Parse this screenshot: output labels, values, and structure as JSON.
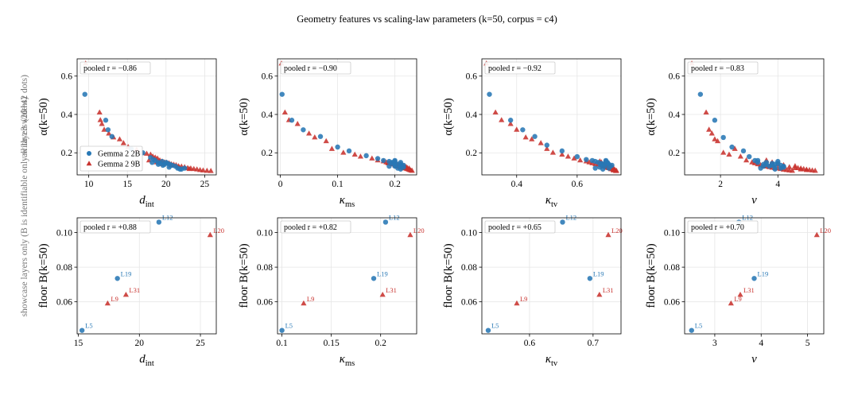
{
  "figure": {
    "title": "Geometry features vs scaling-law parameters  (k=50, corpus = c4)",
    "row_labels": [
      "all layers  (26+42 dots)",
      "showcase layers only  (B is identifiable only with ≥3 widths)"
    ]
  },
  "legend": {
    "placement": "lower-left (top-left panel)",
    "entries": [
      {
        "name": "Gemma 2 2B",
        "marker": "circle",
        "color": "#2878b5"
      },
      {
        "name": "Gemma 2 9B",
        "marker": "triangle",
        "color": "#c8322e"
      }
    ]
  },
  "colors": {
    "gemma_2b": "#2878b5",
    "gemma_9b": "#c8322e",
    "grid": "#e6e6e6"
  },
  "chart_data": [
    {
      "type": "scatter",
      "row": 0,
      "col": 0,
      "xlabel": "d",
      "xlabel_sub": "int",
      "ylabel": "α(k=50)",
      "xlim": [
        8.5,
        26.5
      ],
      "ylim": [
        0.085,
        0.69
      ],
      "xticks": [
        10,
        15,
        20,
        25
      ],
      "yticks": [
        0.2,
        0.4,
        0.6
      ],
      "ytick_labels": [
        "0.2",
        "0.4",
        "0.6"
      ],
      "pooled_r": "pooled  r = −0.86",
      "legend": true,
      "series": [
        {
          "name": "Gemma 2 2B",
          "marker": "circle",
          "x": [
            9.5,
            12.2,
            12.5,
            13.0,
            15.5,
            17.0,
            18.0,
            18.4,
            18.6,
            19.0,
            19.2,
            19.5,
            19.8,
            20.0,
            20.2,
            20.5,
            20.8,
            21.2,
            21.5,
            22.0,
            22.4,
            18.2,
            19.6,
            20.4,
            21.8,
            19.0
          ],
          "y": [
            0.505,
            0.37,
            0.32,
            0.285,
            0.22,
            0.2,
            0.175,
            0.165,
            0.16,
            0.15,
            0.145,
            0.155,
            0.14,
            0.15,
            0.145,
            0.14,
            0.135,
            0.13,
            0.12,
            0.115,
            0.12,
            0.15,
            0.135,
            0.125,
            0.115,
            0.14
          ]
        },
        {
          "name": "Gemma 2 9B",
          "marker": "triangle",
          "x": [
            9.6,
            11.4,
            11.5,
            11.7,
            12.0,
            12.6,
            13.2,
            14.0,
            14.5,
            15.1,
            16.2,
            16.9,
            17.5,
            18.0,
            18.3,
            18.6,
            18.9,
            19.2,
            19.5,
            19.8,
            20.1,
            20.4,
            20.7,
            21.0,
            21.3,
            21.6,
            22.0,
            22.4,
            22.8,
            23.2,
            23.6,
            24.0,
            24.4,
            24.8,
            25.3,
            25.8,
            17.8,
            18.8,
            19.6,
            20.6,
            21.7,
            23.0
          ],
          "y": [
            0.665,
            0.41,
            0.37,
            0.35,
            0.32,
            0.3,
            0.28,
            0.27,
            0.25,
            0.23,
            0.215,
            0.2,
            0.195,
            0.19,
            0.18,
            0.175,
            0.17,
            0.16,
            0.155,
            0.15,
            0.148,
            0.145,
            0.14,
            0.138,
            0.135,
            0.13,
            0.128,
            0.125,
            0.12,
            0.118,
            0.115,
            0.113,
            0.11,
            0.108,
            0.106,
            0.105,
            0.16,
            0.15,
            0.14,
            0.132,
            0.125,
            0.115
          ]
        }
      ]
    },
    {
      "type": "scatter",
      "row": 0,
      "col": 1,
      "xlabel": "κ",
      "xlabel_sub": "ms",
      "ylabel": "α(k=50)",
      "xlim": [
        -0.005,
        0.238
      ],
      "ylim": [
        0.085,
        0.69
      ],
      "xticks": [
        0.0,
        0.1,
        0.2
      ],
      "yticks": [
        0.2,
        0.4,
        0.6
      ],
      "ytick_labels": [
        "0.2",
        "0.4",
        "0.6"
      ],
      "pooled_r": "pooled  r = −0.90",
      "legend": false,
      "series": [
        {
          "name": "Gemma 2 2B",
          "marker": "circle",
          "x": [
            0.003,
            0.02,
            0.04,
            0.07,
            0.1,
            0.12,
            0.15,
            0.17,
            0.18,
            0.19,
            0.195,
            0.2,
            0.2,
            0.205,
            0.21,
            0.21,
            0.215,
            0.2,
            0.205,
            0.21,
            0.195,
            0.19,
            0.2,
            0.215,
            0.21,
            0.2
          ],
          "y": [
            0.505,
            0.37,
            0.32,
            0.285,
            0.23,
            0.21,
            0.185,
            0.17,
            0.16,
            0.155,
            0.15,
            0.145,
            0.155,
            0.14,
            0.14,
            0.15,
            0.135,
            0.13,
            0.12,
            0.125,
            0.145,
            0.13,
            0.16,
            0.125,
            0.115,
            0.135
          ]
        },
        {
          "name": "Gemma 2 9B",
          "marker": "triangle",
          "x": [
            0.002,
            0.008,
            0.015,
            0.03,
            0.05,
            0.06,
            0.08,
            0.09,
            0.11,
            0.13,
            0.14,
            0.16,
            0.17,
            0.18,
            0.185,
            0.19,
            0.195,
            0.2,
            0.203,
            0.206,
            0.209,
            0.212,
            0.215,
            0.218,
            0.221,
            0.224,
            0.226,
            0.228,
            0.23,
            0.21,
            0.2,
            0.205,
            0.215,
            0.22,
            0.225,
            0.195,
            0.188,
            0.208,
            0.218,
            0.222,
            0.212,
            0.2
          ],
          "y": [
            0.665,
            0.41,
            0.37,
            0.35,
            0.3,
            0.28,
            0.26,
            0.22,
            0.2,
            0.19,
            0.18,
            0.17,
            0.16,
            0.155,
            0.15,
            0.145,
            0.14,
            0.135,
            0.13,
            0.128,
            0.125,
            0.122,
            0.12,
            0.118,
            0.115,
            0.112,
            0.11,
            0.108,
            0.106,
            0.14,
            0.15,
            0.138,
            0.13,
            0.125,
            0.118,
            0.142,
            0.145,
            0.135,
            0.128,
            0.12,
            0.132,
            0.145
          ]
        }
      ]
    },
    {
      "type": "scatter",
      "row": 0,
      "col": 2,
      "xlabel": "κ",
      "xlabel_sub": "tv",
      "ylabel": "α(k=50)",
      "xlim": [
        0.285,
        0.745
      ],
      "ylim": [
        0.085,
        0.69
      ],
      "xticks": [
        0.4,
        0.6
      ],
      "yticks": [
        0.2,
        0.4,
        0.6
      ],
      "ytick_labels": [
        "0.2",
        "0.4",
        "0.6"
      ],
      "pooled_r": "pooled  r = −0.92",
      "legend": false,
      "series": [
        {
          "name": "Gemma 2 2B",
          "marker": "circle",
          "x": [
            0.31,
            0.38,
            0.42,
            0.46,
            0.5,
            0.55,
            0.6,
            0.63,
            0.65,
            0.66,
            0.67,
            0.68,
            0.69,
            0.695,
            0.7,
            0.705,
            0.71,
            0.66,
            0.675,
            0.69,
            0.7,
            0.68,
            0.695,
            0.705,
            0.715,
            0.685
          ],
          "y": [
            0.505,
            0.37,
            0.32,
            0.285,
            0.24,
            0.21,
            0.18,
            0.165,
            0.16,
            0.155,
            0.15,
            0.145,
            0.14,
            0.155,
            0.15,
            0.14,
            0.13,
            0.12,
            0.125,
            0.13,
            0.145,
            0.14,
            0.16,
            0.12,
            0.135,
            0.115
          ]
        },
        {
          "name": "Gemma 2 9B",
          "marker": "triangle",
          "x": [
            0.3,
            0.33,
            0.35,
            0.38,
            0.4,
            0.43,
            0.45,
            0.48,
            0.5,
            0.52,
            0.55,
            0.57,
            0.59,
            0.61,
            0.63,
            0.64,
            0.65,
            0.66,
            0.67,
            0.68,
            0.685,
            0.69,
            0.695,
            0.7,
            0.705,
            0.71,
            0.715,
            0.72,
            0.725,
            0.73,
            0.7,
            0.69,
            0.705,
            0.715,
            0.72,
            0.68,
            0.675,
            0.71,
            0.72,
            0.695,
            0.712,
            0.728
          ],
          "y": [
            0.665,
            0.41,
            0.37,
            0.35,
            0.32,
            0.28,
            0.27,
            0.25,
            0.22,
            0.2,
            0.19,
            0.18,
            0.17,
            0.16,
            0.155,
            0.15,
            0.145,
            0.14,
            0.138,
            0.135,
            0.13,
            0.128,
            0.125,
            0.122,
            0.12,
            0.118,
            0.115,
            0.112,
            0.11,
            0.106,
            0.145,
            0.14,
            0.133,
            0.127,
            0.12,
            0.15,
            0.155,
            0.125,
            0.108,
            0.128,
            0.114,
            0.105
          ]
        }
      ]
    },
    {
      "type": "scatter",
      "row": 0,
      "col": 3,
      "xlabel": "ν",
      "xlabel_sub": "",
      "ylabel": "α(k=50)",
      "xlim": [
        0.75,
        5.6
      ],
      "ylim": [
        0.085,
        0.69
      ],
      "xticks": [
        2,
        4
      ],
      "yticks": [
        0.2,
        0.4,
        0.6
      ],
      "ytick_labels": [
        "0.2",
        "0.4",
        "0.6"
      ],
      "pooled_r": "pooled  r = −0.83",
      "legend": false,
      "series": [
        {
          "name": "Gemma 2 2B",
          "marker": "circle",
          "x": [
            1.3,
            1.8,
            2.1,
            2.4,
            2.8,
            3.0,
            3.2,
            3.3,
            3.5,
            3.6,
            3.8,
            3.9,
            4.0,
            4.1,
            4.2,
            3.7,
            3.4,
            3.9,
            4.1,
            3.6,
            3.8,
            4.0,
            3.5,
            3.3,
            4.2,
            3.9
          ],
          "y": [
            0.505,
            0.37,
            0.28,
            0.23,
            0.21,
            0.18,
            0.16,
            0.15,
            0.14,
            0.15,
            0.145,
            0.14,
            0.155,
            0.135,
            0.13,
            0.13,
            0.12,
            0.125,
            0.12,
            0.14,
            0.135,
            0.145,
            0.13,
            0.16,
            0.125,
            0.115
          ]
        },
        {
          "name": "Gemma 2 9B",
          "marker": "triangle",
          "x": [
            1.0,
            1.5,
            1.6,
            1.7,
            1.8,
            1.9,
            2.1,
            2.3,
            2.5,
            2.7,
            2.9,
            3.1,
            3.2,
            3.3,
            3.4,
            3.5,
            3.6,
            3.7,
            3.8,
            3.9,
            4.0,
            4.1,
            4.2,
            4.3,
            4.4,
            4.5,
            4.6,
            4.7,
            4.8,
            4.9,
            5.0,
            5.1,
            5.2,
            5.3,
            3.6,
            3.8,
            4.0,
            4.2,
            4.4,
            4.6,
            4.8,
            5.0
          ],
          "y": [
            0.665,
            0.41,
            0.32,
            0.3,
            0.27,
            0.26,
            0.2,
            0.19,
            0.22,
            0.18,
            0.16,
            0.15,
            0.145,
            0.14,
            0.135,
            0.13,
            0.128,
            0.125,
            0.122,
            0.12,
            0.118,
            0.115,
            0.112,
            0.11,
            0.108,
            0.106,
            0.13,
            0.12,
            0.118,
            0.115,
            0.112,
            0.11,
            0.108,
            0.106,
            0.16,
            0.15,
            0.14,
            0.135,
            0.125,
            0.12,
            0.113,
            0.11
          ]
        }
      ]
    },
    {
      "type": "scatter",
      "row": 1,
      "col": 0,
      "xlabel": "d",
      "xlabel_sub": "int",
      "ylabel": "floor  B(k=50)",
      "xlim": [
        14.9,
        26.3
      ],
      "ylim": [
        0.0415,
        0.1085
      ],
      "xticks": [
        15,
        20,
        25
      ],
      "yticks": [
        0.06,
        0.08,
        0.1
      ],
      "ytick_labels": [
        "0.06",
        "0.08",
        "0.10"
      ],
      "pooled_r": "pooled  r = +0.88",
      "legend": false,
      "series": [
        {
          "name": "Gemma 2 2B",
          "marker": "circle",
          "x": [
            15.3,
            18.2,
            21.6
          ],
          "y": [
            0.0435,
            0.0735,
            0.106
          ],
          "labels": [
            "L5",
            "L19",
            "L12"
          ]
        },
        {
          "name": "Gemma 2 9B",
          "marker": "triangle",
          "x": [
            17.4,
            18.9,
            25.8
          ],
          "y": [
            0.059,
            0.064,
            0.0985
          ],
          "labels": [
            "L9",
            "L31",
            "L20"
          ]
        }
      ]
    },
    {
      "type": "scatter",
      "row": 1,
      "col": 1,
      "xlabel": "κ",
      "xlabel_sub": "ms",
      "ylabel": "floor  B(k=50)",
      "xlim": [
        0.0955,
        0.2365
      ],
      "ylim": [
        0.0415,
        0.1085
      ],
      "xticks": [
        0.1,
        0.15,
        0.2
      ],
      "yticks": [
        0.06,
        0.08,
        0.1
      ],
      "ytick_labels": [
        "0.06",
        "0.08",
        "0.10"
      ],
      "pooled_r": "pooled  r = +0.82",
      "legend": false,
      "series": [
        {
          "name": "Gemma 2 2B",
          "marker": "circle",
          "x": [
            0.1,
            0.193,
            0.205
          ],
          "y": [
            0.0435,
            0.0735,
            0.106
          ],
          "labels": [
            "L5",
            "L19",
            "L12"
          ]
        },
        {
          "name": "Gemma 2 9B",
          "marker": "triangle",
          "x": [
            0.122,
            0.202,
            0.23
          ],
          "y": [
            0.059,
            0.064,
            0.0985
          ],
          "labels": [
            "L9",
            "L31",
            "L20"
          ]
        }
      ]
    },
    {
      "type": "scatter",
      "row": 1,
      "col": 2,
      "xlabel": "κ",
      "xlabel_sub": "tv",
      "ylabel": "floor  B(k=50)",
      "xlim": [
        0.525,
        0.744
      ],
      "ylim": [
        0.0415,
        0.1085
      ],
      "xticks": [
        0.6,
        0.7
      ],
      "yticks": [
        0.06,
        0.08,
        0.1
      ],
      "ytick_labels": [
        "0.06",
        "0.08",
        "0.10"
      ],
      "pooled_r": "pooled  r = +0.65",
      "legend": false,
      "series": [
        {
          "name": "Gemma 2 2B",
          "marker": "circle",
          "x": [
            0.535,
            0.695,
            0.652
          ],
          "y": [
            0.0435,
            0.0735,
            0.106
          ],
          "labels": [
            "L5",
            "L19",
            "L12"
          ]
        },
        {
          "name": "Gemma 2 9B",
          "marker": "triangle",
          "x": [
            0.58,
            0.71,
            0.724
          ],
          "y": [
            0.059,
            0.064,
            0.0985
          ],
          "labels": [
            "L9",
            "L31",
            "L20"
          ]
        }
      ]
    },
    {
      "type": "scatter",
      "row": 1,
      "col": 3,
      "xlabel": "ν",
      "xlabel_sub": "",
      "ylabel": "floor  B(k=50)",
      "xlim": [
        2.35,
        5.35
      ],
      "ylim": [
        0.0415,
        0.1085
      ],
      "xticks": [
        3,
        4,
        5
      ],
      "yticks": [
        0.06,
        0.08,
        0.1
      ],
      "ytick_labels": [
        "0.06",
        "0.08",
        "0.10"
      ],
      "pooled_r": "pooled  r = +0.70",
      "legend": false,
      "series": [
        {
          "name": "Gemma 2 2B",
          "marker": "circle",
          "x": [
            2.5,
            3.85,
            3.52
          ],
          "y": [
            0.0435,
            0.0735,
            0.106
          ],
          "labels": [
            "L5",
            "L19",
            "L12"
          ]
        },
        {
          "name": "Gemma 2 9B",
          "marker": "triangle",
          "x": [
            3.35,
            3.55,
            5.2
          ],
          "y": [
            0.059,
            0.064,
            0.0985
          ],
          "labels": [
            "L9",
            "L31",
            "L20"
          ]
        }
      ]
    }
  ]
}
